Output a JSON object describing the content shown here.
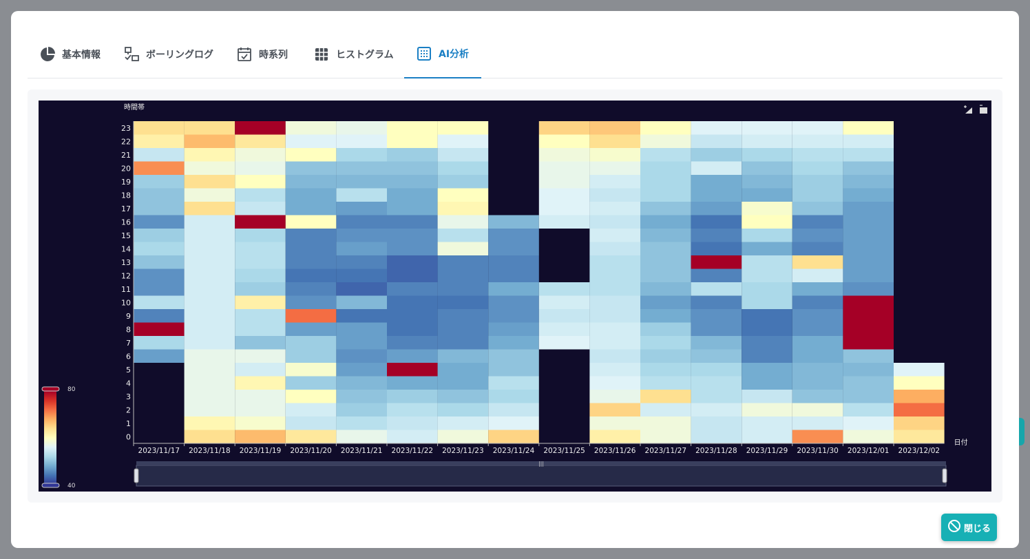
{
  "tabs": [
    {
      "label": "基本情報",
      "icon": "pie-chart-icon",
      "active": false
    },
    {
      "label": "ボーリングログ",
      "icon": "polling-log-icon",
      "active": false
    },
    {
      "label": "時系列",
      "icon": "calendar-check-icon",
      "active": false
    },
    {
      "label": "ヒストグラム",
      "icon": "grid-icon",
      "active": false
    },
    {
      "label": "AI分析",
      "icon": "grid-dots-icon",
      "active": true
    }
  ],
  "colors": {
    "accent": "#1a7fc4",
    "chart_bg": "#100c2a",
    "close_button": "#17b0b5"
  },
  "close_button": {
    "label": "閉じる",
    "icon": "ban-icon"
  },
  "toolbar": {
    "icons": [
      "zoom-select-icon",
      "zoom-reset-icon"
    ]
  },
  "chart_data": {
    "type": "heatmap",
    "ylabel": "時間帯",
    "xlabel": "日付",
    "categories": [
      "2023/11/17",
      "2023/11/18",
      "2023/11/19",
      "2023/11/20",
      "2023/11/21",
      "2023/11/22",
      "2023/11/23",
      "2023/11/24",
      "2023/11/25",
      "2023/11/26",
      "2023/11/27",
      "2023/11/28",
      "2023/11/29",
      "2023/11/30",
      "2023/12/01",
      "2023/12/02"
    ],
    "hours": [
      "0",
      "1",
      "2",
      "3",
      "4",
      "5",
      "6",
      "7",
      "8",
      "9",
      "10",
      "11",
      "12",
      "13",
      "14",
      "15",
      "16",
      "17",
      "18",
      "19",
      "20",
      "21",
      "22",
      "23"
    ],
    "visual_map": {
      "min": 40,
      "max": 80,
      "min_label": "40",
      "max_label": "80"
    },
    "values": [
      [
        null,
        null,
        null,
        null,
        null,
        null,
        47,
        52,
        80,
        45,
        53,
        46,
        46,
        50,
        52,
        51,
        46,
        50,
        50,
        51,
        70,
        54,
        62,
        64
      ],
      [
        64,
        61,
        57,
        57,
        57,
        57,
        57,
        55,
        55,
        55,
        55,
        55,
        55,
        55,
        55,
        55,
        55,
        64,
        58,
        64,
        58,
        61,
        67,
        64
      ],
      [
        67,
        59,
        57,
        57,
        61,
        55,
        57,
        50,
        53,
        53,
        62,
        51,
        52,
        53,
        53,
        52,
        80,
        54,
        53,
        60,
        57,
        58,
        63,
        80
      ],
      [
        63,
        54,
        55,
        60,
        51,
        59,
        51,
        51,
        47,
        72,
        46,
        45,
        44,
        45,
        45,
        45,
        60,
        48,
        48,
        49,
        50,
        60,
        56,
        58
      ],
      [
        57,
        53,
        51,
        50,
        49,
        47,
        46,
        47,
        47,
        44,
        49,
        43,
        44,
        45,
        47,
        46,
        45,
        47,
        53,
        49,
        50,
        52,
        56,
        57
      ],
      [
        55,
        54,
        53,
        51,
        48,
        80,
        47,
        45,
        44,
        44,
        44,
        45,
        43,
        43,
        46,
        46,
        45,
        48,
        48,
        49,
        50,
        51,
        60,
        60
      ],
      [
        58,
        55,
        52,
        50,
        48,
        48,
        49,
        45,
        45,
        45,
        44,
        45,
        45,
        45,
        58,
        53,
        57,
        61,
        60,
        51,
        52,
        54,
        56,
        60
      ],
      [
        65,
        56,
        54,
        52,
        53,
        50,
        50,
        48,
        47,
        46,
        46,
        48,
        45,
        45,
        46,
        46,
        49,
        null,
        null,
        null,
        null,
        null,
        null,
        null
      ],
      [
        null,
        null,
        null,
        null,
        null,
        null,
        null,
        56,
        55,
        54,
        55,
        53,
        null,
        null,
        null,
        null,
        55,
        56,
        56,
        57,
        57,
        58,
        60,
        65
      ],
      [
        62,
        58,
        65,
        57,
        56,
        55,
        54,
        55,
        55,
        54,
        54,
        53,
        53,
        53,
        54,
        55,
        54,
        55,
        54,
        55,
        57,
        59,
        64,
        66
      ],
      [
        58,
        58,
        55,
        64,
        53,
        52,
        51,
        52,
        51,
        48,
        47,
        49,
        50,
        50,
        50,
        49,
        48,
        50,
        52,
        52,
        52,
        53,
        58,
        60
      ],
      [
        54,
        54,
        55,
        53,
        53,
        52,
        50,
        49,
        46,
        46,
        45,
        53,
        45,
        80,
        44,
        45,
        44,
        47,
        48,
        48,
        55,
        51,
        54,
        56
      ],
      [
        55,
        55,
        58,
        54,
        48,
        48,
        45,
        45,
        44,
        44,
        52,
        52,
        53,
        53,
        48,
        52,
        60,
        59,
        48,
        49,
        50,
        52,
        55,
        56
      ],
      [
        70,
        55,
        58,
        50,
        49,
        49,
        48,
        48,
        46,
        46,
        45,
        48,
        55,
        64,
        45,
        46,
        45,
        50,
        51,
        51,
        52,
        53,
        55,
        56
      ],
      [
        58,
        56,
        53,
        50,
        50,
        49,
        50,
        80,
        80,
        80,
        80,
        46,
        47,
        47,
        47,
        47,
        47,
        47,
        48,
        49,
        50,
        53,
        55,
        60
      ],
      [
        63,
        65,
        72,
        68,
        60,
        56,
        null,
        null,
        null,
        null,
        null,
        null,
        null,
        null,
        null,
        null,
        null,
        null,
        null,
        null,
        null,
        null,
        null,
        null
      ]
    ]
  }
}
